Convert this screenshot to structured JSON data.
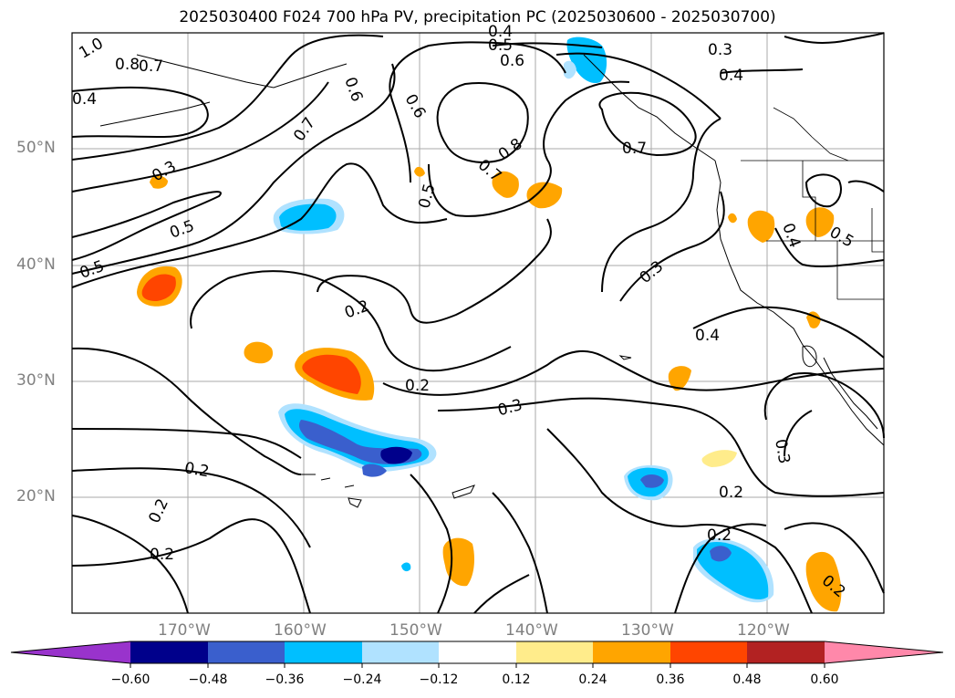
{
  "title": "2025030400 F024 700 hPa PV, precipitation PC (2025030600 - 2025030700)",
  "map": {
    "lat_labels": [
      "50°N",
      "40°N",
      "30°N",
      "20°N"
    ],
    "lon_labels": [
      "170°W",
      "160°W",
      "150°W",
      "140°W",
      "130°W",
      "120°W"
    ],
    "contour_labels": [
      "1.0",
      "0.8",
      "0.7",
      "0.6",
      "0.6",
      "0.4",
      "0.5",
      "0.4",
      "0.3",
      "0.4",
      "0.6",
      "0.7",
      "0.8",
      "0.7",
      "0.7",
      "0.3",
      "0.5",
      "0.5",
      "0.5",
      "0.3",
      "0.2",
      "0.4",
      "0.4",
      "0.5",
      "0.2",
      "0.3",
      "0.2",
      "0.2",
      "0.2",
      "0.2",
      "0.2",
      "0.3",
      "0.2"
    ]
  },
  "colorbar": {
    "ticks": [
      "−0.60",
      "−0.48",
      "−0.36",
      "−0.24",
      "−0.12",
      "0.12",
      "0.24",
      "0.36",
      "0.48",
      "0.60"
    ],
    "colors": [
      "#9933cc",
      "#00008b",
      "#3a5fcd",
      "#00bfff",
      "#b0e2ff",
      "#ffffff",
      "#ffec8b",
      "#ffa500",
      "#ff4500",
      "#b22222",
      "#ff88aa"
    ]
  }
}
